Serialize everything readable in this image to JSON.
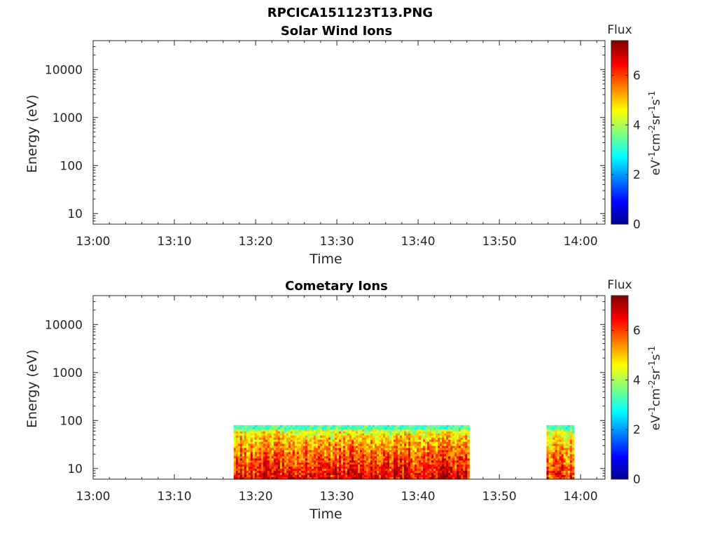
{
  "figure_title": "RPCICA151123T13.PNG",
  "chart_data": [
    {
      "type": "heatmap",
      "title": "Solar Wind Ions",
      "xlabel": "Time",
      "ylabel": "Energy (eV)",
      "x_ticks": [
        "13:00",
        "13:10",
        "13:20",
        "13:30",
        "13:40",
        "13:50",
        "14:00"
      ],
      "x_range_minutes": [
        0,
        63
      ],
      "y_scale": "log",
      "y_ticks": [
        "10",
        "100",
        "1000",
        "10000"
      ],
      "y_range": [
        6,
        40000
      ],
      "colorbar": {
        "title": "Flux",
        "unit": "eV-1cm-2sr-1s-1",
        "ticks": [
          "0",
          "2",
          "4",
          "6"
        ],
        "range": [
          0,
          7.4
        ],
        "colormap": "jet"
      },
      "data_blocks": []
    },
    {
      "type": "heatmap",
      "title": "Cometary Ions",
      "xlabel": "Time",
      "ylabel": "Energy (eV)",
      "x_ticks": [
        "13:00",
        "13:10",
        "13:20",
        "13:30",
        "13:40",
        "13:50",
        "14:00"
      ],
      "x_range_minutes": [
        0,
        63
      ],
      "y_scale": "log",
      "y_ticks": [
        "10",
        "100",
        "1000",
        "10000"
      ],
      "y_range": [
        6,
        40000
      ],
      "colorbar": {
        "title": "Flux",
        "unit": "eV-1cm-2sr-1s-1",
        "ticks": [
          "0",
          "2",
          "4",
          "6"
        ],
        "range": [
          0,
          7.4
        ],
        "colormap": "jet"
      },
      "data_blocks": [
        {
          "t_start_min": 17.3,
          "t_end_min": 46.3,
          "e_min_eV": 6,
          "e_max_eV": 80,
          "peak_flux": 7.3
        },
        {
          "t_start_min": 55.8,
          "t_end_min": 59.2,
          "e_min_eV": 6,
          "e_max_eV": 80,
          "peak_flux": 6.8
        }
      ]
    }
  ]
}
